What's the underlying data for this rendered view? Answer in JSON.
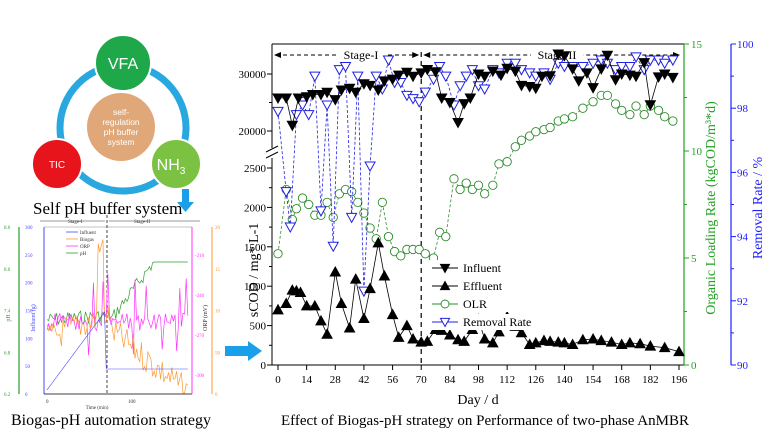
{
  "left_diagram": {
    "caption": "Self pH buffer system",
    "center_label": [
      "self-",
      "regulation",
      "pH buffer",
      "system"
    ],
    "nodes": [
      {
        "label": "VFA",
        "color": "#1fa84a"
      },
      {
        "label": "TIC",
        "color": "#e8141c"
      },
      {
        "label": "NH",
        "subscript": "3",
        "color": "#7cc242"
      }
    ],
    "ring_color": "#29a8e0",
    "center_color": "#e0a878"
  },
  "mini_chart": {
    "caption": "Biogas-pH automation strategy",
    "xlabel": "Time (min)",
    "x_ticks": [
      "0",
      "100"
    ],
    "stage_labels": [
      "Stage-I",
      "Stage-II"
    ],
    "axes": {
      "pH": {
        "label": "pH",
        "ticks": [
          "6.2",
          "6.8",
          "7.4",
          "8.0",
          "8.6"
        ],
        "color": "#2e9e2e"
      },
      "influent": {
        "label": "Influent (g)",
        "ticks": [
          "0",
          "50",
          "100",
          "150",
          "200",
          "250",
          "300"
        ],
        "color": "#4a4aff"
      },
      "orp": {
        "label": "ORP (mV)",
        "ticks": [
          "-210",
          "-240",
          "-270",
          "-300"
        ],
        "color": "#ff33ff"
      },
      "biogas": {
        "label": "Biogas",
        "ticks": [
          "0",
          "50",
          "10",
          "15",
          "20"
        ],
        "color": "#ff9933"
      }
    },
    "legend": [
      "Influent",
      "Biogas",
      "ORP",
      "pH"
    ]
  },
  "main_caption": "Effect of Biogas-pH strategy on Performance of two-phase AnMBR",
  "chart_data": {
    "type": "line",
    "title": "",
    "xlabel": "Day / d",
    "ylabel": "sCOD / mg* L-1",
    "y2label": "Organic Loading Rate (kgCOD/m³*d)",
    "y3label": "Removal Rate / %",
    "x_ticks": [
      "0",
      "14",
      "28",
      "42",
      "56",
      "70",
      "84",
      "98",
      "112",
      "126",
      "140",
      "154",
      "168",
      "182",
      "196"
    ],
    "xlim": [
      -3,
      200
    ],
    "y_lower_ticks": [
      "0",
      "500",
      "1000",
      "1500",
      "2000",
      "2500"
    ],
    "y_upper_ticks": [
      "20000",
      "30000"
    ],
    "ylim_lower": [
      0,
      2500
    ],
    "ylim_upper": [
      20000,
      32500
    ],
    "y2_ticks": [
      "0",
      "5",
      "10",
      "15"
    ],
    "y2lim": [
      0,
      15
    ],
    "y3_ticks": [
      "90",
      "92",
      "94",
      "96",
      "98",
      "100"
    ],
    "y3lim": [
      90,
      100
    ],
    "stage_labels": [
      "Stage-I",
      "Stage-II"
    ],
    "stage_boundary_day": 70,
    "legend": [
      "Influent",
      "Effluent",
      "OLR",
      "Removal Rate"
    ],
    "legend_position": "lower-right",
    "colors": {
      "influent": "#000000",
      "effluent": "#000000",
      "olr": "#2e8b2e",
      "removal": "#2020e0",
      "green_axis": "#22a022",
      "blue_axis": "#2020ff"
    },
    "series": [
      {
        "name": "Influent",
        "axis": "left-upper",
        "x": [
          0,
          4,
          7,
          10,
          14,
          17,
          21,
          24,
          28,
          31,
          35,
          38,
          42,
          45,
          49,
          52,
          56,
          59,
          63,
          66,
          70,
          73,
          77,
          80,
          84,
          88,
          91,
          94,
          98,
          101,
          105,
          109,
          112,
          116,
          119,
          123,
          126,
          129,
          133,
          137,
          140,
          144,
          147,
          151,
          154,
          158,
          161,
          165,
          168,
          172,
          175,
          179,
          182,
          186,
          189,
          193
        ],
        "values": [
          25800,
          25800,
          21000,
          25800,
          26000,
          26400,
          26400,
          26800,
          25500,
          27200,
          27500,
          26800,
          28300,
          28000,
          27200,
          28800,
          29100,
          29800,
          30300,
          29600,
          30200,
          30800,
          30400,
          25800,
          25000,
          21500,
          24800,
          25800,
          30000,
          29600,
          30500,
          29800,
          31000,
          30500,
          28000,
          27800,
          27500,
          29600,
          29700,
          33500,
          33200,
          30900,
          28800,
          30200,
          27600,
          30900,
          33300,
          29000,
          30000,
          29800,
          29600,
          32000,
          24600,
          29500,
          30000,
          29400
        ]
      },
      {
        "name": "Effluent",
        "axis": "left-lower",
        "x": [
          0,
          4,
          7,
          9,
          11,
          14,
          18,
          21,
          24,
          28,
          31,
          35,
          38,
          42,
          45,
          49,
          52,
          56,
          59,
          63,
          66,
          70,
          73,
          77,
          80,
          84,
          88,
          91,
          95,
          98,
          101,
          105,
          108,
          112,
          116,
          119,
          123,
          126,
          130,
          133,
          137,
          140,
          144,
          149,
          154,
          158,
          163,
          168,
          172,
          177,
          182,
          189,
          196
        ],
        "values": [
          700,
          780,
          950,
          940,
          920,
          750,
          750,
          560,
          390,
          1180,
          780,
          470,
          1090,
          590,
          970,
          1550,
          1130,
          640,
          350,
          500,
          330,
          290,
          300,
          450,
          440,
          380,
          320,
          300,
          450,
          580,
          330,
          280,
          420,
          610,
          490,
          410,
          260,
          280,
          310,
          300,
          290,
          280,
          260,
          320,
          330,
          310,
          290,
          260,
          280,
          270,
          240,
          220,
          170
        ]
      },
      {
        "name": "OLR",
        "axis": "right-olr",
        "x": [
          0,
          4,
          7,
          9,
          12,
          15,
          18,
          21,
          24,
          27,
          30,
          33,
          36,
          39,
          42,
          45,
          48,
          51,
          54,
          57,
          60,
          63,
          66,
          69,
          72,
          76,
          79,
          82,
          86,
          89,
          92,
          95,
          98,
          101,
          105,
          108,
          112,
          116,
          119,
          123,
          126,
          130,
          133,
          137,
          140,
          144,
          149,
          154,
          158,
          161,
          165,
          168,
          172,
          175,
          179,
          182,
          186,
          189,
          193
        ],
        "values": [
          5.2,
          8.2,
          6.8,
          7.3,
          7.8,
          7.5,
          7.0,
          7.0,
          7.6,
          6.9,
          8.0,
          8.2,
          8.1,
          7.6,
          7.1,
          6.4,
          5.9,
          7.6,
          6.0,
          5.3,
          5.1,
          5.4,
          5.4,
          5.4,
          5.2,
          5.0,
          6.2,
          6.0,
          8.7,
          8.2,
          8.5,
          8.2,
          8.4,
          8.0,
          8.4,
          9.4,
          9.5,
          10.2,
          10.5,
          10.7,
          10.9,
          11.0,
          11.1,
          11.4,
          11.5,
          11.6,
          12.0,
          12.3,
          12.6,
          12.6,
          12.2,
          11.9,
          11.7,
          12.1,
          11.7,
          12.1,
          11.9,
          11.6,
          11.4
        ]
      },
      {
        "name": "Removal Rate",
        "axis": "right-removal",
        "x": [
          0,
          4,
          6,
          9,
          12,
          15,
          18,
          21,
          24,
          27,
          30,
          33,
          36,
          39,
          42,
          45,
          48,
          51,
          54,
          57,
          60,
          63,
          66,
          69,
          72,
          76,
          79,
          82,
          86,
          89,
          92,
          95,
          98,
          101,
          105,
          108,
          112,
          116,
          119,
          123,
          126,
          130,
          133,
          137,
          140,
          144,
          149,
          154,
          158,
          161,
          165,
          168,
          172,
          175,
          179,
          182,
          186,
          189,
          193
        ],
        "values": [
          97.9,
          95.4,
          94.3,
          97.8,
          98.1,
          97.8,
          99.0,
          94.8,
          98.1,
          93.7,
          99.2,
          99.3,
          94.6,
          99.0,
          92.3,
          96.2,
          99.0,
          98.6,
          99.5,
          98.8,
          98.8,
          98.4,
          98.3,
          98.2,
          98.5,
          98.9,
          99.3,
          99.0,
          98.1,
          98.7,
          99.0,
          99.2,
          98.7,
          98.6,
          99.2,
          99.1,
          99.4,
          99.4,
          99.2,
          99.1,
          99.0,
          99.1,
          98.9,
          99.4,
          99.3,
          99.3,
          99.3,
          99.4,
          99.5,
          99.4,
          99.2,
          99.3,
          99.3,
          99.6,
          99.2,
          99.5,
          99.5,
          99.4,
          99.5
        ]
      }
    ]
  }
}
